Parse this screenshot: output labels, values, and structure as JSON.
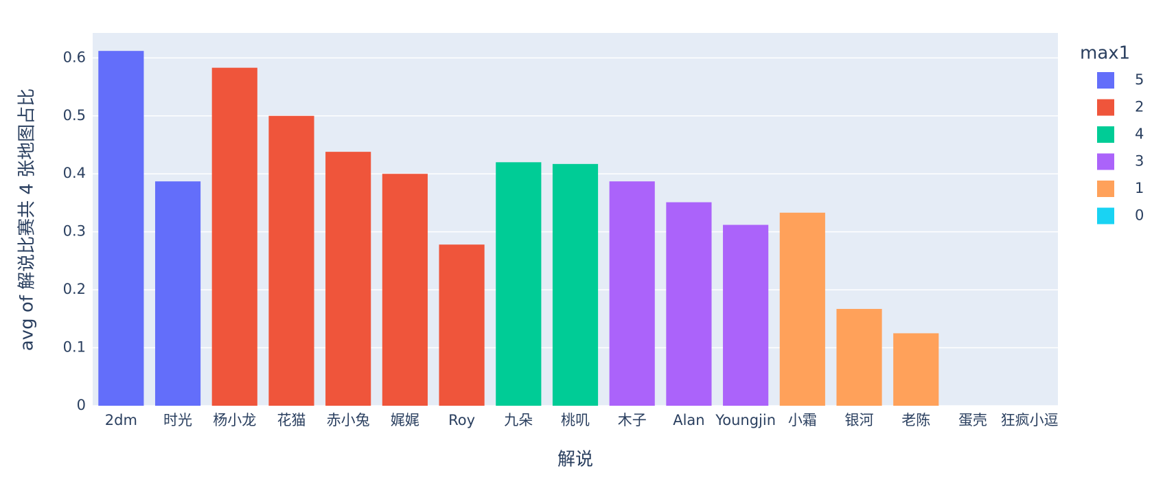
{
  "chart_data": {
    "type": "bar",
    "x_label": "解说",
    "y_label": "avg of 解说比赛共 4 张地图占比",
    "legend_title": "max1",
    "legend_position": "right",
    "grid": true,
    "categories": [
      "2dm",
      "时光",
      "杨小龙",
      "花猫",
      "赤小兔",
      "娓娓",
      "Roy",
      "九朵",
      "桃叽",
      "木子",
      "Alan",
      "Youngjin",
      "小霜",
      "银河",
      "老陈",
      "蛋壳",
      "狂疯小逗"
    ],
    "series": [
      {
        "name": "5",
        "color": "#636efa",
        "values": [
          0.612,
          0.387,
          null,
          null,
          null,
          null,
          null,
          null,
          null,
          null,
          null,
          null,
          null,
          null,
          null,
          null,
          null
        ]
      },
      {
        "name": "2",
        "color": "#ef553b",
        "values": [
          null,
          null,
          0.583,
          0.5,
          0.438,
          0.4,
          0.278,
          null,
          null,
          null,
          null,
          null,
          null,
          null,
          null,
          null,
          null
        ]
      },
      {
        "name": "4",
        "color": "#00cc96",
        "values": [
          null,
          null,
          null,
          null,
          null,
          null,
          null,
          0.42,
          0.417,
          null,
          null,
          null,
          null,
          null,
          null,
          null,
          null
        ]
      },
      {
        "name": "3",
        "color": "#ab63fa",
        "values": [
          null,
          null,
          null,
          null,
          null,
          null,
          null,
          null,
          null,
          0.387,
          0.351,
          0.312,
          null,
          null,
          null,
          null,
          null
        ]
      },
      {
        "name": "1",
        "color": "#ffa15a",
        "values": [
          null,
          null,
          null,
          null,
          null,
          null,
          null,
          null,
          null,
          null,
          null,
          null,
          0.333,
          0.167,
          0.125,
          null,
          null
        ]
      },
      {
        "name": "0",
        "color": "#19d3f3",
        "values": [
          null,
          null,
          null,
          null,
          null,
          null,
          null,
          null,
          null,
          null,
          null,
          null,
          null,
          null,
          null,
          0,
          0
        ]
      }
    ],
    "ylim": [
      0,
      0.643
    ],
    "yticks": [
      0,
      0.1,
      0.2,
      0.3,
      0.4,
      0.5,
      0.6
    ]
  }
}
